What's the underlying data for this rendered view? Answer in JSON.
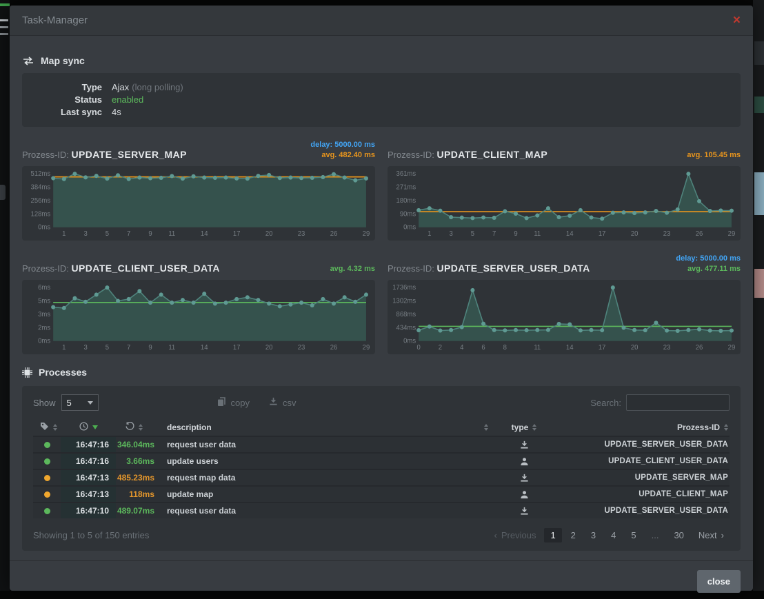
{
  "colors": {
    "accent_blue": "#42a5f5",
    "accent_orange": "#e8951d",
    "accent_green": "#5cb85c",
    "status_orange": "#f0a72e",
    "close_red": "#c0392f"
  },
  "window": {
    "title": "Task-Manager",
    "close_icon": "×"
  },
  "map_sync": {
    "heading": "Map sync",
    "rows": [
      {
        "label": "Type",
        "value": "Ajax",
        "suffix": "(long polling)"
      },
      {
        "label": "Status",
        "value": "enabled"
      },
      {
        "label": "Last sync",
        "value": "4s"
      }
    ]
  },
  "chart_data": [
    {
      "type": "area",
      "title_prefix": "Prozess-ID:",
      "process_id": "UPDATE_SERVER_MAP",
      "delay_label": "delay: 5000.00 ms",
      "avg_label": "avg. 482.40 ms",
      "avg_value": 482.4,
      "avg_color": "#e8951d",
      "ylabel": "ms",
      "y_ticks": [
        "512ms",
        "384ms",
        "256ms",
        "128ms",
        "0ms"
      ],
      "y_max": 512,
      "x_ticks": [
        1,
        3,
        5,
        7,
        9,
        11,
        14,
        17,
        20,
        23,
        26,
        29
      ],
      "values": [
        470,
        462,
        512,
        478,
        492,
        466,
        498,
        462,
        476,
        470,
        474,
        490,
        466,
        488,
        476,
        474,
        476,
        468,
        466,
        492,
        500,
        472,
        476,
        472,
        474,
        480,
        508,
        476,
        450,
        468
      ]
    },
    {
      "type": "area",
      "title_prefix": "Prozess-ID:",
      "process_id": "UPDATE_CLIENT_MAP",
      "avg_label": "avg. 105.45 ms",
      "avg_value": 105.45,
      "avg_color": "#e8951d",
      "ylabel": "ms",
      "y_ticks": [
        "361ms",
        "271ms",
        "180ms",
        "90ms",
        "0ms"
      ],
      "y_max": 361,
      "x_ticks": [
        1,
        3,
        5,
        7,
        9,
        11,
        14,
        17,
        20,
        23,
        26,
        29
      ],
      "values": [
        115,
        128,
        112,
        68,
        65,
        62,
        66,
        64,
        108,
        92,
        62,
        80,
        128,
        68,
        78,
        115,
        66,
        58,
        98,
        100,
        96,
        100,
        110,
        98,
        120,
        361,
        176,
        110,
        113,
        112
      ]
    },
    {
      "type": "area",
      "title_prefix": "Prozess-ID:",
      "process_id": "UPDATE_CLIENT_USER_DATA",
      "avg_label": "avg. 4.32 ms",
      "avg_value": 4.32,
      "avg_color": "#5cb85c",
      "ylabel": "ms",
      "y_ticks": [
        "6ms",
        "5ms",
        "3ms",
        "2ms",
        "0ms"
      ],
      "y_max": 6,
      "x_ticks": [
        1,
        3,
        5,
        7,
        9,
        11,
        14,
        17,
        20,
        23,
        26,
        29
      ],
      "values": [
        3.8,
        3.7,
        4.8,
        4.4,
        5.2,
        6.0,
        4.5,
        4.7,
        5.6,
        4.3,
        5.2,
        4.3,
        4.6,
        4.3,
        5.3,
        4.2,
        4.3,
        4.7,
        4.9,
        4.6,
        4.2,
        3.9,
        4.1,
        4.3,
        4.0,
        4.7,
        4.2,
        4.9,
        4.4,
        5.2
      ]
    },
    {
      "type": "area",
      "title_prefix": "Prozess-ID:",
      "process_id": "UPDATE_SERVER_USER_DATA",
      "delay_label": "delay: 5000.00 ms",
      "avg_label": "avg. 477.11 ms",
      "avg_value": 477.11,
      "avg_color": "#5cb85c",
      "ylabel": "ms",
      "y_ticks": [
        "1736ms",
        "1302ms",
        "868ms",
        "434ms",
        "0ms"
      ],
      "y_max": 1736,
      "x_ticks": [
        0,
        2,
        4,
        6,
        8,
        11,
        14,
        17,
        20,
        23,
        26,
        29
      ],
      "values": [
        350,
        470,
        340,
        355,
        450,
        1650,
        560,
        355,
        345,
        355,
        350,
        355,
        360,
        555,
        540,
        345,
        355,
        350,
        1736,
        430,
        355,
        350,
        590,
        340,
        330,
        355,
        380,
        340,
        330,
        340
      ]
    }
  ],
  "processes": {
    "heading": "Processes",
    "show_label": "Show",
    "show_value": "5",
    "copy_label": "copy",
    "csv_label": "csv",
    "search_label": "Search:",
    "search_value": "",
    "columns": {
      "description": "description",
      "type": "type",
      "prozess_id": "Prozess-ID"
    },
    "rows": [
      {
        "status": "green",
        "time": "16:47:16",
        "duration": "346.04ms",
        "duration_color": "green",
        "description": "request user data",
        "type_icon": "download-icon",
        "prozess_id": "UPDATE_SERVER_USER_DATA"
      },
      {
        "status": "green",
        "time": "16:47:16",
        "duration": "3.66ms",
        "duration_color": "green",
        "description": "update users",
        "type_icon": "user-icon",
        "prozess_id": "UPDATE_CLIENT_USER_DATA"
      },
      {
        "status": "orange",
        "time": "16:47:13",
        "duration": "485.23ms",
        "duration_color": "orange",
        "description": "request map data",
        "type_icon": "download-icon",
        "prozess_id": "UPDATE_SERVER_MAP"
      },
      {
        "status": "orange",
        "time": "16:47:13",
        "duration": "118ms",
        "duration_color": "orange",
        "description": "update map",
        "type_icon": "user-icon",
        "prozess_id": "UPDATE_CLIENT_MAP"
      },
      {
        "status": "green",
        "time": "16:47:10",
        "duration": "489.07ms",
        "duration_color": "green",
        "description": "request user data",
        "type_icon": "download-icon",
        "prozess_id": "UPDATE_SERVER_USER_DATA"
      }
    ],
    "info": "Showing 1 to 5 of 150 entries",
    "pagination": {
      "previous": "Previous",
      "pages": [
        "1",
        "2",
        "3",
        "4",
        "5",
        "...",
        "30"
      ],
      "active": "1",
      "next": "Next"
    }
  },
  "footer": {
    "close_label": "close"
  }
}
